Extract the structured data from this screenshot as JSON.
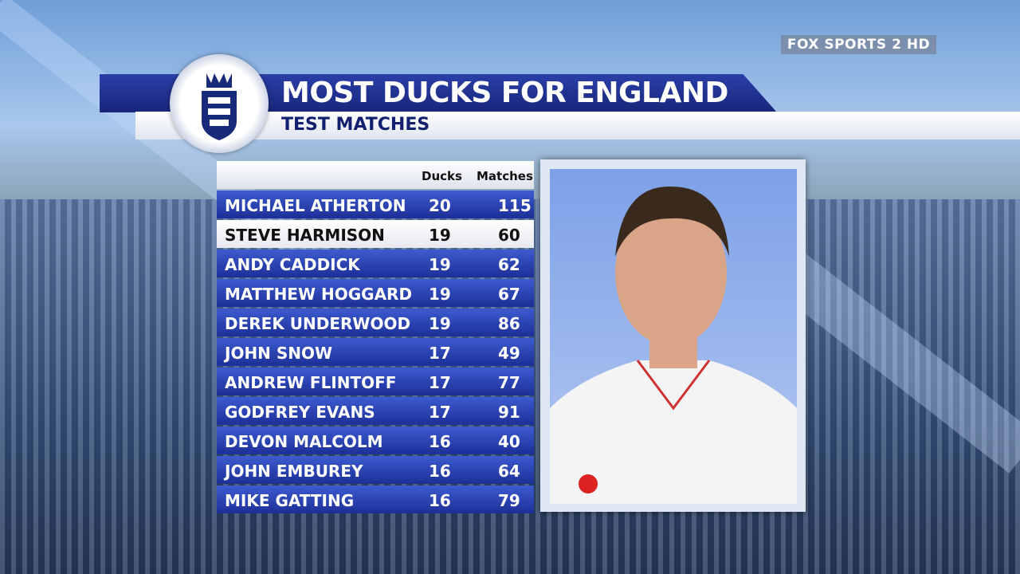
{
  "broadcaster": "FOX SPORTS 2 HD",
  "header": {
    "title": "MOST DUCKS FOR ENGLAND",
    "subtitle": "TEST MATCHES"
  },
  "table": {
    "columns": [
      "Ducks",
      "Matches"
    ],
    "rows": [
      [
        "MICHAEL ATHERTON",
        20,
        115
      ],
      [
        "STEVE HARMISON",
        19,
        60
      ],
      [
        "ANDY CADDICK",
        19,
        62
      ],
      [
        "MATTHEW HOGGARD",
        19,
        67
      ],
      [
        "DEREK UNDERWOOD",
        19,
        86
      ],
      [
        "JOHN SNOW",
        17,
        49
      ],
      [
        "ANDREW FLINTOFF",
        17,
        77
      ],
      [
        "GODFREY EVANS",
        17,
        91
      ],
      [
        "DEVON MALCOLM",
        16,
        40
      ],
      [
        "JOHN EMBUREY",
        16,
        64
      ],
      [
        "MIKE GATTING",
        16,
        79
      ]
    ]
  }
}
